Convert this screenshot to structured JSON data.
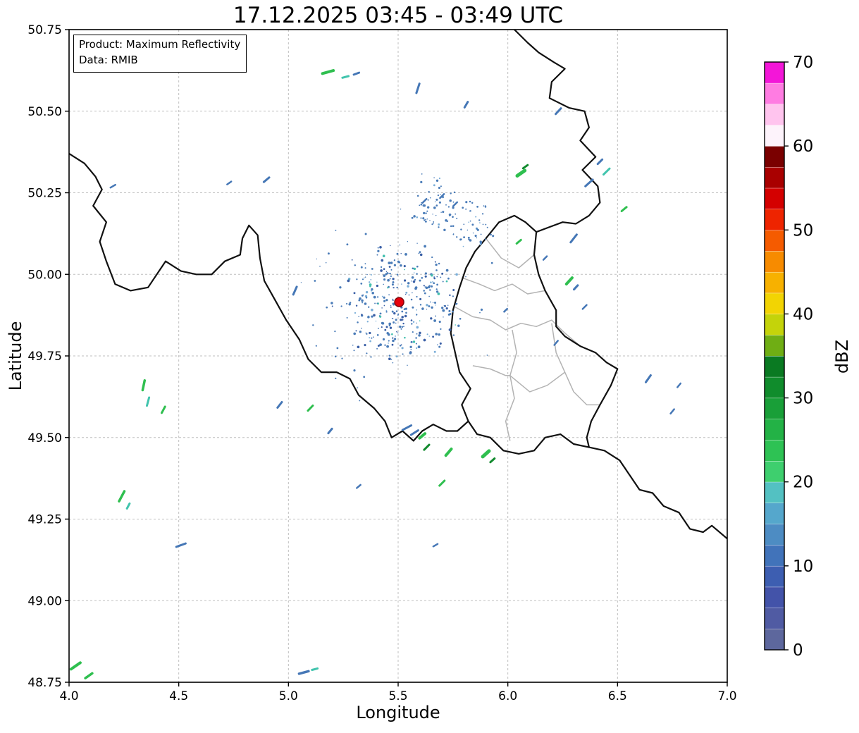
{
  "title": "17.12.2025 03:45 - 03:49 UTC",
  "annotation": {
    "line1": "Product: Maximum Reflectivity",
    "line2": "Data: RMIB"
  },
  "axes": {
    "xlabel": "Longitude",
    "ylabel": "Latitude",
    "xlim": [
      4.0,
      7.0
    ],
    "ylim": [
      48.75,
      50.75
    ],
    "xticks": [
      4.0,
      4.5,
      5.0,
      5.5,
      6.0,
      6.5,
      7.0
    ],
    "xtick_labels": [
      "4.0",
      "4.5",
      "5.0",
      "5.5",
      "6.0",
      "6.5",
      "7.0"
    ],
    "yticks": [
      48.75,
      49.0,
      49.25,
      49.5,
      49.75,
      50.0,
      50.25,
      50.5,
      50.75
    ],
    "ytick_labels": [
      "48.75",
      "49.00",
      "49.25",
      "49.50",
      "49.75",
      "50.00",
      "50.25",
      "50.50",
      "50.75"
    ],
    "grid": "dashed"
  },
  "colorbar": {
    "label": "dBZ",
    "min": 0,
    "max": 70,
    "ticks": [
      0,
      10,
      20,
      30,
      40,
      50,
      60,
      70
    ],
    "segment_size_dbz": 2.5,
    "colors_bottom_to_top": [
      "#5d679d",
      "#505ba3",
      "#4353a9",
      "#3d5eb1",
      "#4173ba",
      "#4d8cc3",
      "#55a7cc",
      "#53c1c2",
      "#3ecf6e",
      "#2ec254",
      "#23b246",
      "#199f38",
      "#108c2c",
      "#0a7a22",
      "#6fae14",
      "#c4d30a",
      "#f2d403",
      "#f7b100",
      "#f78b00",
      "#f55b00",
      "#ee2400",
      "#d40000",
      "#a90000",
      "#7a0000",
      "#fdf3fb",
      "#ffc4ee",
      "#ff7ce2",
      "#f316d8"
    ]
  },
  "chart_data": {
    "type": "radar-reflectivity-map",
    "title": "17.12.2025 03:45 - 03:49 UTC",
    "product": "Maximum Reflectivity",
    "data_source": "RMIB",
    "radar_site": {
      "lon": 5.505,
      "lat": 49.915
    },
    "echo_colors": {
      "blue": "#4577b6",
      "green": "#2fbf4f",
      "darkgreen": "#128a2e",
      "teal": "#41c4ad"
    },
    "echoes": [
      [
        5.18,
        50.62,
        15,
        16,
        4,
        "green"
      ],
      [
        5.26,
        50.605,
        15,
        9,
        3,
        "teal"
      ],
      [
        5.31,
        50.615,
        20,
        8,
        3,
        "blue"
      ],
      [
        5.59,
        50.57,
        72,
        14,
        3,
        "blue"
      ],
      [
        5.81,
        50.52,
        60,
        9,
        3,
        "blue"
      ],
      [
        6.23,
        50.5,
        48,
        11,
        3,
        "blue"
      ],
      [
        4.9,
        50.29,
        40,
        10,
        3,
        "blue"
      ],
      [
        4.73,
        50.28,
        35,
        7,
        2.5,
        "blue"
      ],
      [
        4.2,
        50.27,
        30,
        8,
        2.5,
        "blue"
      ],
      [
        6.06,
        50.31,
        35,
        13,
        5,
        "green"
      ],
      [
        6.08,
        50.33,
        35,
        8,
        3,
        "darkgreen"
      ],
      [
        6.37,
        50.28,
        42,
        14,
        3,
        "blue"
      ],
      [
        6.45,
        50.315,
        45,
        12,
        3,
        "teal"
      ],
      [
        6.42,
        50.345,
        45,
        9,
        3,
        "blue"
      ],
      [
        6.53,
        50.2,
        40,
        9,
        3,
        "green"
      ],
      [
        6.3,
        50.11,
        52,
        14,
        3,
        "blue"
      ],
      [
        6.28,
        49.98,
        48,
        12,
        4,
        "green"
      ],
      [
        6.31,
        49.96,
        48,
        8,
        3,
        "blue"
      ],
      [
        6.05,
        50.1,
        40,
        8,
        3,
        "green"
      ],
      [
        6.22,
        49.79,
        50,
        8,
        2.5,
        "blue"
      ],
      [
        5.99,
        49.89,
        45,
        6,
        2.5,
        "blue"
      ],
      [
        5.03,
        49.95,
        66,
        12,
        3,
        "blue"
      ],
      [
        4.34,
        49.66,
        78,
        14,
        3.5,
        "green"
      ],
      [
        4.36,
        49.61,
        75,
        12,
        3,
        "teal"
      ],
      [
        4.43,
        49.585,
        62,
        10,
        3,
        "green"
      ],
      [
        4.96,
        49.6,
        52,
        10,
        3,
        "blue"
      ],
      [
        5.1,
        49.59,
        46,
        10,
        3,
        "green"
      ],
      [
        5.19,
        49.52,
        50,
        8,
        3,
        "blue"
      ],
      [
        5.54,
        49.53,
        28,
        14,
        3,
        "blue"
      ],
      [
        5.575,
        49.515,
        32,
        12,
        3,
        "blue"
      ],
      [
        5.61,
        49.505,
        40,
        10,
        4,
        "green"
      ],
      [
        5.63,
        49.47,
        45,
        10,
        3,
        "darkgreen"
      ],
      [
        5.73,
        49.455,
        50,
        12,
        4,
        "green"
      ],
      [
        5.9,
        49.45,
        42,
        12,
        5,
        "green"
      ],
      [
        5.93,
        49.43,
        42,
        8,
        3,
        "darkgreen"
      ],
      [
        5.7,
        49.36,
        45,
        10,
        3,
        "green"
      ],
      [
        5.32,
        49.35,
        40,
        7,
        2.5,
        "blue"
      ],
      [
        4.24,
        49.32,
        62,
        16,
        3.5,
        "green"
      ],
      [
        4.27,
        49.29,
        62,
        8,
        3,
        "teal"
      ],
      [
        4.51,
        49.17,
        20,
        14,
        3,
        "blue"
      ],
      [
        5.67,
        49.17,
        30,
        7,
        2.5,
        "blue"
      ],
      [
        6.64,
        49.68,
        55,
        12,
        3,
        "blue"
      ],
      [
        6.78,
        49.66,
        50,
        7,
        2.5,
        "blue"
      ],
      [
        6.75,
        49.58,
        50,
        8,
        2.5,
        "blue"
      ],
      [
        4.03,
        48.8,
        35,
        16,
        4,
        "green"
      ],
      [
        4.09,
        48.77,
        35,
        12,
        3.5,
        "green"
      ],
      [
        5.07,
        48.78,
        15,
        14,
        3.5,
        "blue"
      ],
      [
        5.12,
        48.79,
        15,
        8,
        3,
        "teal"
      ],
      [
        5.62,
        50.225,
        45,
        8,
        2.5,
        "blue"
      ],
      [
        5.7,
        50.24,
        45,
        8,
        2.5,
        "blue"
      ],
      [
        5.76,
        50.215,
        45,
        8,
        2.5,
        "blue"
      ],
      [
        6.17,
        50.05,
        45,
        7,
        2.5,
        "blue"
      ],
      [
        6.35,
        49.9,
        45,
        8,
        2.5,
        "blue"
      ]
    ],
    "clutter": {
      "seed": 1337
    },
    "borders": {
      "country": [
        [
          [
            6.03,
            50.75
          ],
          [
            6.09,
            50.71
          ],
          [
            6.14,
            50.68
          ],
          [
            6.21,
            50.65
          ],
          [
            6.26,
            50.63
          ],
          [
            6.2,
            50.59
          ],
          [
            6.19,
            50.54
          ],
          [
            6.28,
            50.51
          ],
          [
            6.35,
            50.5
          ],
          [
            6.37,
            50.45
          ],
          [
            6.33,
            50.41
          ],
          [
            6.4,
            50.36
          ],
          [
            6.34,
            50.32
          ],
          [
            6.41,
            50.27
          ],
          [
            6.42,
            50.22
          ],
          [
            6.37,
            50.18
          ],
          [
            6.31,
            50.155
          ],
          [
            6.25,
            50.16
          ],
          [
            6.19,
            50.145
          ],
          [
            6.13,
            50.13
          ]
        ],
        [
          [
            6.13,
            50.13
          ],
          [
            6.12,
            50.06
          ],
          [
            6.14,
            50.0
          ],
          [
            6.17,
            49.95
          ],
          [
            6.22,
            49.89
          ],
          [
            6.22,
            49.84
          ],
          [
            6.26,
            49.81
          ],
          [
            6.33,
            49.78
          ],
          [
            6.4,
            49.76
          ],
          [
            6.45,
            49.73
          ],
          [
            6.5,
            49.71
          ],
          [
            6.47,
            49.66
          ],
          [
            6.42,
            49.6
          ],
          [
            6.38,
            49.55
          ],
          [
            6.36,
            49.5
          ],
          [
            6.37,
            49.47
          ],
          [
            6.3,
            49.48
          ],
          [
            6.24,
            49.51
          ],
          [
            6.17,
            49.5
          ],
          [
            6.12,
            49.46
          ],
          [
            6.05,
            49.45
          ],
          [
            5.98,
            49.46
          ],
          [
            5.92,
            49.5
          ],
          [
            5.86,
            49.51
          ],
          [
            5.82,
            49.55
          ],
          [
            5.79,
            49.6
          ],
          [
            5.83,
            49.65
          ],
          [
            5.78,
            49.7
          ],
          [
            5.76,
            49.76
          ],
          [
            5.74,
            49.82
          ],
          [
            5.75,
            49.89
          ],
          [
            5.78,
            49.96
          ],
          [
            5.81,
            50.02
          ],
          [
            5.85,
            50.07
          ],
          [
            5.9,
            50.11
          ],
          [
            5.96,
            50.16
          ],
          [
            6.03,
            50.18
          ],
          [
            6.08,
            50.16
          ],
          [
            6.13,
            50.13
          ]
        ],
        [
          [
            4.0,
            50.37
          ],
          [
            4.07,
            50.34
          ],
          [
            4.12,
            50.3
          ],
          [
            4.15,
            50.26
          ],
          [
            4.11,
            50.21
          ],
          [
            4.17,
            50.16
          ],
          [
            4.14,
            50.1
          ],
          [
            4.17,
            50.04
          ],
          [
            4.21,
            49.97
          ],
          [
            4.28,
            49.95
          ],
          [
            4.36,
            49.96
          ],
          [
            4.4,
            50.0
          ],
          [
            4.44,
            50.04
          ],
          [
            4.51,
            50.01
          ],
          [
            4.58,
            50.0
          ],
          [
            4.65,
            50.0
          ],
          [
            4.71,
            50.04
          ],
          [
            4.78,
            50.06
          ],
          [
            4.79,
            50.11
          ],
          [
            4.82,
            50.15
          ],
          [
            4.86,
            50.12
          ],
          [
            4.87,
            50.05
          ],
          [
            4.89,
            49.98
          ],
          [
            4.94,
            49.92
          ],
          [
            4.99,
            49.86
          ],
          [
            5.05,
            49.8
          ],
          [
            5.09,
            49.74
          ],
          [
            5.15,
            49.7
          ],
          [
            5.22,
            49.7
          ],
          [
            5.28,
            49.68
          ],
          [
            5.32,
            49.63
          ],
          [
            5.39,
            49.59
          ],
          [
            5.44,
            49.55
          ],
          [
            5.47,
            49.5
          ],
          [
            5.52,
            49.52
          ],
          [
            5.57,
            49.49
          ],
          [
            5.61,
            49.52
          ],
          [
            5.66,
            49.54
          ],
          [
            5.72,
            49.52
          ],
          [
            5.77,
            49.52
          ],
          [
            5.82,
            49.55
          ]
        ],
        [
          [
            6.37,
            49.47
          ],
          [
            6.44,
            49.46
          ],
          [
            6.51,
            49.43
          ],
          [
            6.56,
            49.38
          ],
          [
            6.6,
            49.34
          ],
          [
            6.66,
            49.33
          ],
          [
            6.71,
            49.29
          ],
          [
            6.78,
            49.27
          ],
          [
            6.83,
            49.22
          ],
          [
            6.89,
            49.21
          ],
          [
            6.93,
            49.23
          ],
          [
            7.0,
            49.19
          ]
        ]
      ],
      "regions": [
        [
          [
            5.76,
            49.9
          ],
          [
            5.84,
            49.87
          ],
          [
            5.92,
            49.86
          ],
          [
            5.99,
            49.83
          ],
          [
            6.06,
            49.85
          ],
          [
            6.13,
            49.84
          ],
          [
            6.2,
            49.86
          ],
          [
            6.26,
            49.82
          ],
          [
            6.33,
            49.78
          ]
        ],
        [
          [
            5.79,
            49.99
          ],
          [
            5.87,
            49.97
          ],
          [
            5.94,
            49.95
          ],
          [
            6.02,
            49.97
          ],
          [
            6.09,
            49.94
          ],
          [
            6.17,
            49.95
          ]
        ],
        [
          [
            6.02,
            49.83
          ],
          [
            6.04,
            49.76
          ],
          [
            6.01,
            49.69
          ],
          [
            6.03,
            49.62
          ],
          [
            5.99,
            49.55
          ],
          [
            6.01,
            49.49
          ]
        ],
        [
          [
            6.2,
            49.85
          ],
          [
            6.22,
            49.76
          ],
          [
            6.26,
            49.7
          ],
          [
            6.3,
            49.64
          ],
          [
            6.36,
            49.6
          ],
          [
            6.42,
            49.6
          ]
        ],
        [
          [
            5.84,
            49.72
          ],
          [
            5.92,
            49.71
          ],
          [
            5.99,
            49.69
          ],
          [
            6.01,
            49.69
          ]
        ],
        [
          [
            6.26,
            49.7
          ],
          [
            6.18,
            49.66
          ],
          [
            6.1,
            49.64
          ],
          [
            6.01,
            49.69
          ]
        ],
        [
          [
            5.9,
            50.11
          ],
          [
            5.97,
            50.05
          ],
          [
            6.05,
            50.02
          ],
          [
            6.12,
            50.06
          ]
        ]
      ]
    }
  }
}
